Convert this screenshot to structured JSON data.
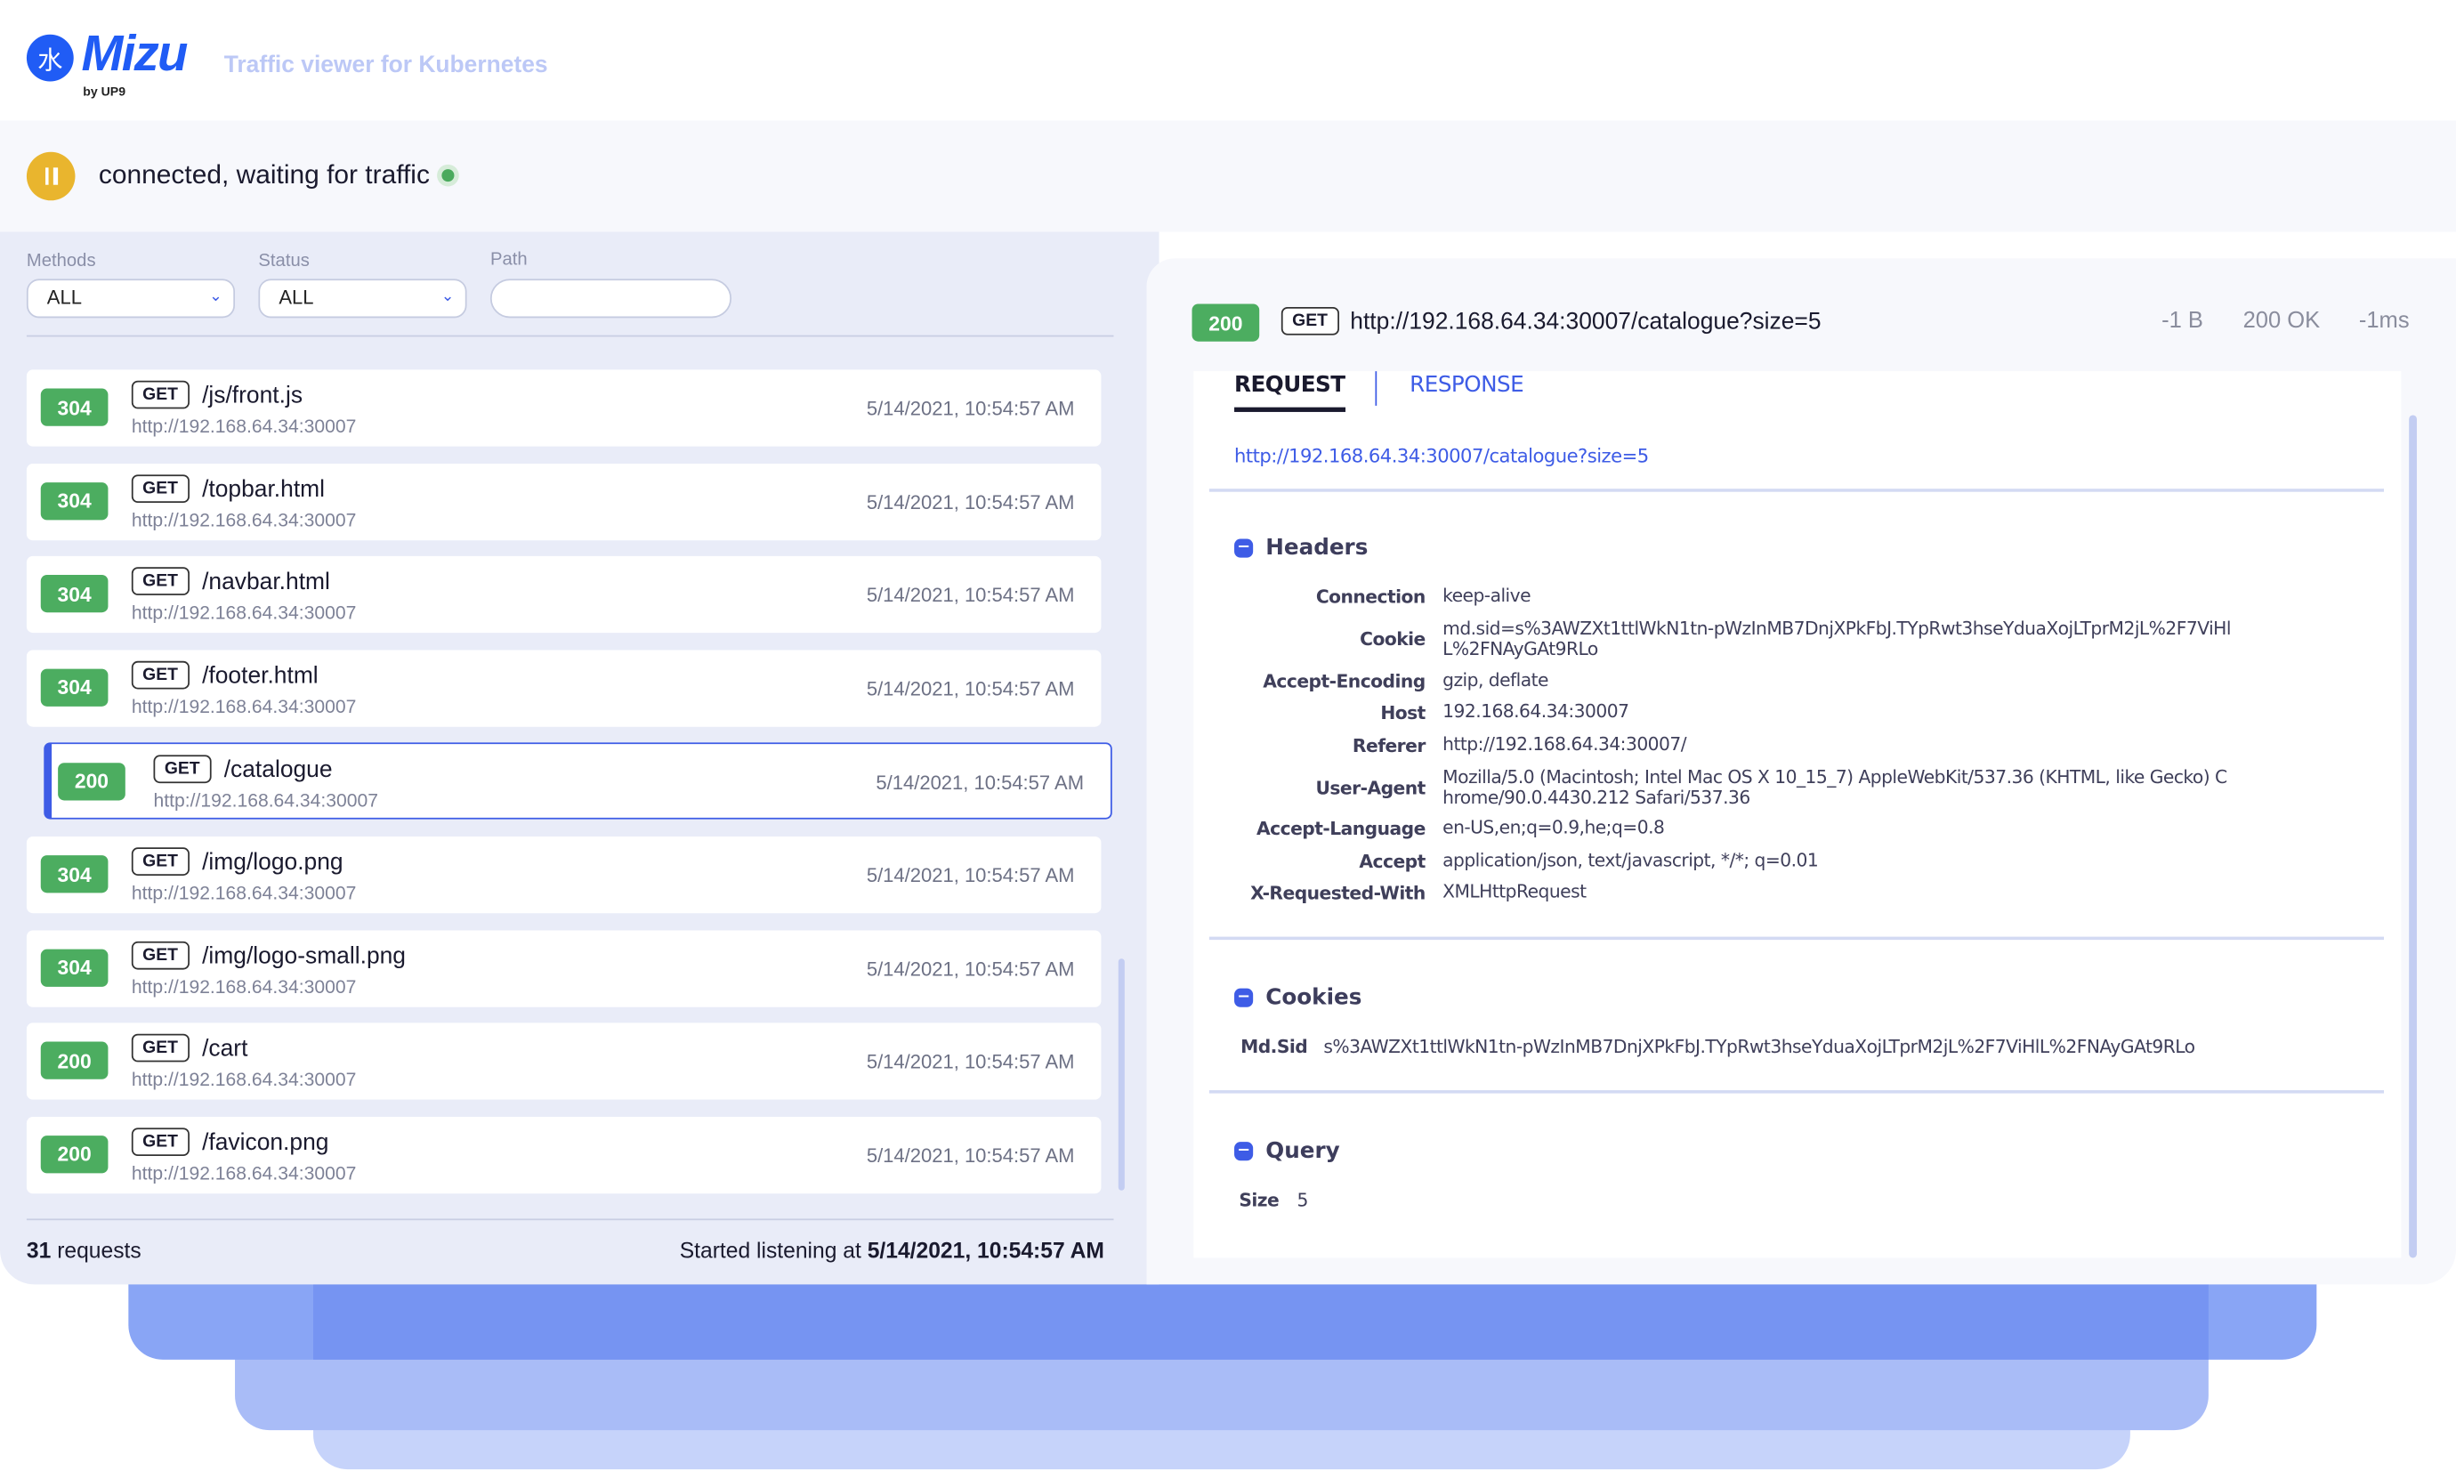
{
  "app": {
    "logo_glyph": "水",
    "logo_text": "Mizu",
    "by_text": "by UP9",
    "tagline": "Traffic viewer for Kubernetes"
  },
  "status": {
    "text": "connected, waiting for traffic",
    "state_color": "#4aaa5d",
    "pause_color": "#e9b52e"
  },
  "filters": {
    "methods_label": "Methods",
    "methods_value": "ALL",
    "status_label": "Status",
    "status_value": "ALL",
    "path_label": "Path",
    "path_value": ""
  },
  "entries": [
    {
      "status": "304",
      "method": "GET",
      "path": "/js/front.js",
      "host": "http://192.168.64.34:30007",
      "time": "5/14/2021, 10:54:57 AM"
    },
    {
      "status": "304",
      "method": "GET",
      "path": "/topbar.html",
      "host": "http://192.168.64.34:30007",
      "time": "5/14/2021, 10:54:57 AM"
    },
    {
      "status": "304",
      "method": "GET",
      "path": "/navbar.html",
      "host": "http://192.168.64.34:30007",
      "time": "5/14/2021, 10:54:57 AM"
    },
    {
      "status": "304",
      "method": "GET",
      "path": "/footer.html",
      "host": "http://192.168.64.34:30007",
      "time": "5/14/2021, 10:54:57 AM"
    },
    {
      "status": "200",
      "method": "GET",
      "path": "/catalogue",
      "host": "http://192.168.64.34:30007",
      "time": "5/14/2021, 10:54:57 AM",
      "selected": true
    },
    {
      "status": "304",
      "method": "GET",
      "path": "/img/logo.png",
      "host": "http://192.168.64.34:30007",
      "time": "5/14/2021, 10:54:57 AM"
    },
    {
      "status": "304",
      "method": "GET",
      "path": "/img/logo-small.png",
      "host": "http://192.168.64.34:30007",
      "time": "5/14/2021, 10:54:57 AM"
    },
    {
      "status": "200",
      "method": "GET",
      "path": "/cart",
      "host": "http://192.168.64.34:30007",
      "time": "5/14/2021, 10:54:57 AM"
    },
    {
      "status": "200",
      "method": "GET",
      "path": "/favicon.png",
      "host": "http://192.168.64.34:30007",
      "time": "5/14/2021, 10:54:57 AM"
    }
  ],
  "footer": {
    "count": "31",
    "count_suffix": " requests",
    "started_prefix": "Started listening at ",
    "started_time": "5/14/2021, 10:54:57 AM"
  },
  "detail": {
    "status": "200",
    "method": "GET",
    "url": "http://192.168.64.34:30007/catalogue?size=5",
    "size": "-1 B",
    "status_text": "200 OK",
    "duration": "-1ms",
    "tabs": [
      "REQUEST",
      "RESPONSE"
    ],
    "active_tab": "REQUEST",
    "link": "http://192.168.64.34:30007/catalogue?size=5",
    "headers_title": "Headers",
    "headers": [
      {
        "k": "Connection",
        "v": "keep-alive"
      },
      {
        "k": "Cookie",
        "v": "md.sid=s%3AWZXt1ttlWkN1tn-pWzInMB7DnjXPkFbJ.TYpRwt3hseYduaXojLTprM2jL%2F7ViHl\nL%2FNAyGAt9RLo"
      },
      {
        "k": "Accept-Encoding",
        "v": "gzip, deflate"
      },
      {
        "k": "Host",
        "v": "192.168.64.34:30007"
      },
      {
        "k": "Referer",
        "v": "http://192.168.64.34:30007/"
      },
      {
        "k": "User-Agent",
        "v": "Mozilla/5.0 (Macintosh; Intel Mac OS X 10_15_7) AppleWebKit/537.36 (KHTML, like Gecko) C\nhrome/90.0.4430.212 Safari/537.36"
      },
      {
        "k": "Accept-Language",
        "v": "en-US,en;q=0.9,he;q=0.8"
      },
      {
        "k": "Accept",
        "v": "application/json, text/javascript, */*; q=0.01"
      },
      {
        "k": "X-Requested-With",
        "v": "XMLHttpRequest"
      }
    ],
    "cookies_title": "Cookies",
    "cookies": [
      {
        "k": "Md.Sid",
        "v": "s%3AWZXt1ttlWkN1tn-pWzInMB7DnjXPkFbJ.TYpRwt3hseYduaXojLTprM2jL%2F7ViHlL%2FNAyGAt9RLo"
      }
    ],
    "query_title": "Query",
    "query": [
      {
        "k": "Size",
        "v": "5"
      }
    ]
  },
  "colors": {
    "accent": "#3e5ce6",
    "success": "#4cad60",
    "brand": "#205cf5"
  }
}
